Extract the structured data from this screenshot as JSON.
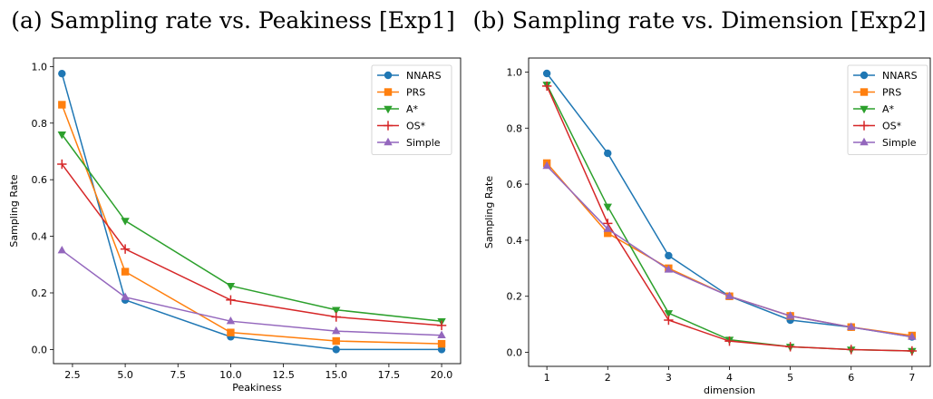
{
  "chart_data": [
    {
      "type": "line",
      "title": "(a) Sampling rate vs. Peakiness [Exp1]",
      "xlabel": "Peakiness",
      "ylabel": "Sampling Rate",
      "xlim": [
        1.6,
        20.9
      ],
      "ylim": [
        -0.05,
        1.03
      ],
      "xticks": [
        "2.5",
        "5.0",
        "7.5",
        "10.0",
        "12.5",
        "15.0",
        "17.5",
        "20.0"
      ],
      "yticks": [
        "0.0",
        "0.2",
        "0.4",
        "0.6",
        "0.8",
        "1.0"
      ],
      "grid": false,
      "legend": "top-right",
      "x": [
        2,
        5,
        10,
        15,
        20
      ],
      "series": [
        {
          "name": "NNARS",
          "color": "#1f77b4",
          "marker": "circle",
          "values": [
            0.975,
            0.175,
            0.045,
            0.0,
            0.0
          ]
        },
        {
          "name": "PRS",
          "color": "#ff7f0e",
          "marker": "square",
          "values": [
            0.865,
            0.275,
            0.06,
            0.03,
            0.02
          ]
        },
        {
          "name": "A*",
          "color": "#2ca02c",
          "marker": "triangle-down",
          "values": [
            0.76,
            0.455,
            0.225,
            0.14,
            0.1
          ]
        },
        {
          "name": "OS*",
          "color": "#d62728",
          "marker": "plus",
          "values": [
            0.655,
            0.355,
            0.175,
            0.115,
            0.085
          ]
        },
        {
          "name": "Simple",
          "color": "#9467bd",
          "marker": "triangle-up",
          "values": [
            0.35,
            0.185,
            0.1,
            0.065,
            0.05
          ]
        }
      ]
    },
    {
      "type": "line",
      "title": "(b) Sampling rate vs. Dimension [Exp2]",
      "xlabel": "dimension",
      "ylabel": "Sampling Rate",
      "xlim": [
        0.7,
        7.3
      ],
      "ylim": [
        -0.05,
        1.05
      ],
      "xticks": [
        "1",
        "2",
        "3",
        "4",
        "5",
        "6",
        "7"
      ],
      "yticks": [
        "0.0",
        "0.2",
        "0.4",
        "0.6",
        "0.8",
        "1.0"
      ],
      "grid": false,
      "legend": "top-right",
      "x": [
        1,
        2,
        3,
        4,
        5,
        6,
        7
      ],
      "series": [
        {
          "name": "NNARS",
          "color": "#1f77b4",
          "marker": "circle",
          "values": [
            0.995,
            0.71,
            0.345,
            0.2,
            0.115,
            0.09,
            0.055
          ]
        },
        {
          "name": "PRS",
          "color": "#ff7f0e",
          "marker": "square",
          "values": [
            0.675,
            0.425,
            0.3,
            0.2,
            0.13,
            0.09,
            0.06
          ]
        },
        {
          "name": "A*",
          "color": "#2ca02c",
          "marker": "triangle-down",
          "values": [
            0.955,
            0.52,
            0.14,
            0.045,
            0.02,
            0.01,
            0.005
          ]
        },
        {
          "name": "OS*",
          "color": "#d62728",
          "marker": "plus",
          "values": [
            0.95,
            0.46,
            0.115,
            0.04,
            0.02,
            0.01,
            0.005
          ]
        },
        {
          "name": "Simple",
          "color": "#9467bd",
          "marker": "triangle-up",
          "values": [
            0.665,
            0.44,
            0.295,
            0.2,
            0.13,
            0.09,
            0.055
          ]
        }
      ]
    }
  ]
}
